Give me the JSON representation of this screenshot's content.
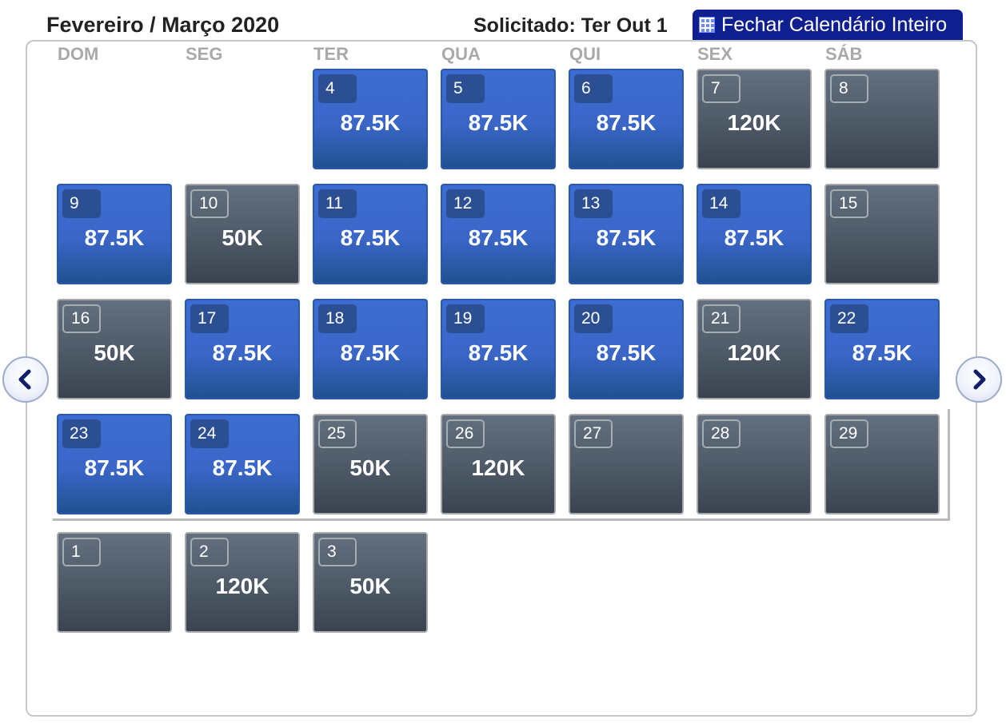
{
  "header": {
    "month_title": "Fevereiro / Março 2020",
    "requested": "Solicitado: Ter Out 1",
    "close_button_label": "Fechar Calendário Inteiro"
  },
  "weekdays": [
    "DOM",
    "SEG",
    "TER",
    "QUA",
    "QUI",
    "SEX",
    "SÁB"
  ],
  "colors": {
    "available": "#3a66c8",
    "unavailable": "#4d5966",
    "button": "#0f1f8f"
  },
  "days": [
    {
      "day": "4",
      "price": "87.5K",
      "status": "available"
    },
    {
      "day": "5",
      "price": "87.5K",
      "status": "available"
    },
    {
      "day": "6",
      "price": "87.5K",
      "status": "available"
    },
    {
      "day": "7",
      "price": "120K",
      "status": "unavailable"
    },
    {
      "day": "8",
      "price": "",
      "status": "unavailable"
    },
    {
      "day": "9",
      "price": "87.5K",
      "status": "available"
    },
    {
      "day": "10",
      "price": "50K",
      "status": "unavailable"
    },
    {
      "day": "11",
      "price": "87.5K",
      "status": "available"
    },
    {
      "day": "12",
      "price": "87.5K",
      "status": "available"
    },
    {
      "day": "13",
      "price": "87.5K",
      "status": "available"
    },
    {
      "day": "14",
      "price": "87.5K",
      "status": "available"
    },
    {
      "day": "15",
      "price": "",
      "status": "unavailable"
    },
    {
      "day": "16",
      "price": "50K",
      "status": "unavailable"
    },
    {
      "day": "17",
      "price": "87.5K",
      "status": "available"
    },
    {
      "day": "18",
      "price": "87.5K",
      "status": "available"
    },
    {
      "day": "19",
      "price": "87.5K",
      "status": "available"
    },
    {
      "day": "20",
      "price": "87.5K",
      "status": "available"
    },
    {
      "day": "21",
      "price": "120K",
      "status": "unavailable"
    },
    {
      "day": "22",
      "price": "87.5K",
      "status": "available"
    },
    {
      "day": "23",
      "price": "87.5K",
      "status": "available"
    },
    {
      "day": "24",
      "price": "87.5K",
      "status": "available"
    },
    {
      "day": "25",
      "price": "50K",
      "status": "unavailable"
    },
    {
      "day": "26",
      "price": "120K",
      "status": "unavailable"
    },
    {
      "day": "27",
      "price": "",
      "status": "unavailable"
    },
    {
      "day": "28",
      "price": "",
      "status": "unavailable"
    },
    {
      "day": "29",
      "price": "",
      "status": "unavailable"
    },
    {
      "day": "1",
      "price": "",
      "status": "unavailable"
    },
    {
      "day": "2",
      "price": "120K",
      "status": "unavailable"
    },
    {
      "day": "3",
      "price": "50K",
      "status": "unavailable"
    }
  ],
  "navigation": {
    "prev_icon": "chevron-left-icon",
    "next_icon": "chevron-right-icon"
  }
}
